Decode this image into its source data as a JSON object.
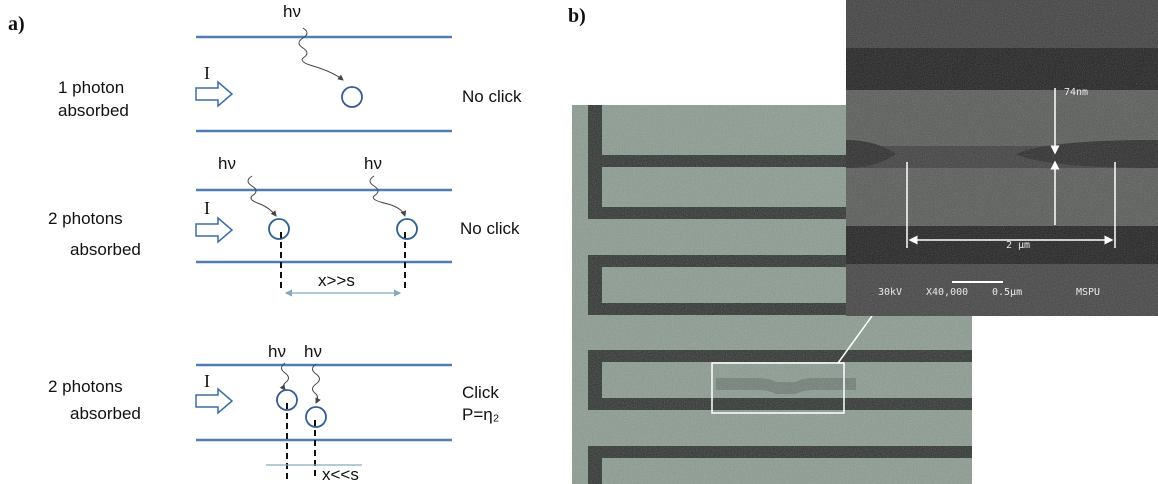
{
  "panel_a": {
    "label": "a)",
    "rows": [
      {
        "label_lines": [
          "1 photon",
          "absorbed"
        ],
        "photons": [
          "hν"
        ],
        "current": "I",
        "result_lines": [
          "No click"
        ]
      },
      {
        "label_lines": [
          "2 photons",
          "absorbed"
        ],
        "photons": [
          "hν",
          "hν"
        ],
        "current": "I",
        "result_lines": [
          "No click"
        ],
        "separation": "x>>s"
      },
      {
        "label_lines": [
          "2 photons",
          "absorbed"
        ],
        "photons": [
          "hν",
          "hν"
        ],
        "current": "I",
        "result_lines": [
          "Click",
          "P=η₂"
        ],
        "separation": "x<<s"
      }
    ]
  },
  "panel_b": {
    "label": "b)",
    "inset": {
      "thickness": "74nm",
      "length": "2 µm",
      "voltage": "30kV",
      "magnification": "X40,000",
      "scale": "0.5µm",
      "lab": "MSPU"
    }
  }
}
